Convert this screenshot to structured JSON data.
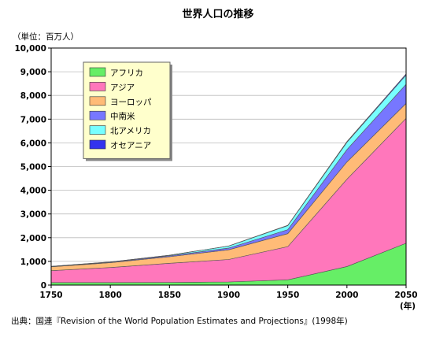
{
  "chart_data": {
    "type": "area",
    "title": "世界人口の推移",
    "unit_label": "（単位：百万人）",
    "xlabel": "(年)",
    "source": "出典：国連『Revision of the World Population Estimates and Projections』(1998年)",
    "x": [
      1750,
      1800,
      1850,
      1900,
      1950,
      2000,
      2050
    ],
    "x_tick_labels": [
      "1750",
      "1800",
      "1850",
      "1900",
      "1950",
      "2000",
      "2050"
    ],
    "ylim": [
      0,
      10000
    ],
    "y_ticks": [
      0,
      1000,
      2000,
      3000,
      4000,
      5000,
      6000,
      7000,
      8000,
      9000,
      10000
    ],
    "y_tick_labels": [
      "0",
      "1,000",
      "2,000",
      "3,000",
      "4,000",
      "5,000",
      "6,000",
      "7,000",
      "8,000",
      "9,000",
      "10,000"
    ],
    "grid": true,
    "legend_position": "top-left",
    "stacked": true,
    "series": [
      {
        "name": "アフリカ",
        "color": "#66ee66",
        "values": [
          106,
          107,
          111,
          133,
          221,
          784,
          1766
        ]
      },
      {
        "name": "アジア",
        "color": "#ff77bb",
        "values": [
          502,
          635,
          809,
          947,
          1402,
          3683,
          5268
        ]
      },
      {
        "name": "ヨーロッパ",
        "color": "#ffbb77",
        "values": [
          163,
          203,
          276,
          408,
          547,
          729,
          628
        ]
      },
      {
        "name": "中南米",
        "color": "#7777ff",
        "values": [
          16,
          24,
          38,
          74,
          167,
          519,
          809
        ]
      },
      {
        "name": "北アメリカ",
        "color": "#77ffff",
        "values": [
          2,
          7,
          26,
          82,
          172,
          310,
          392
        ]
      },
      {
        "name": "オセアニア",
        "color": "#3333ee",
        "values": [
          2,
          2,
          2,
          6,
          13,
          30,
          46
        ]
      }
    ]
  }
}
